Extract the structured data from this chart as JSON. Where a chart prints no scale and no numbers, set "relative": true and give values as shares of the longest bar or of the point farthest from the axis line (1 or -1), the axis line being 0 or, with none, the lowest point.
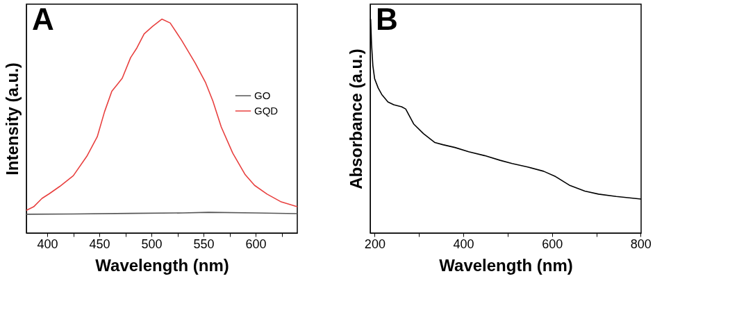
{
  "chart_data": [
    {
      "type": "line",
      "title": "A",
      "xlabel": "Wavelength (nm)",
      "ylabel": "Intensity (a.u.)",
      "relative": true,
      "legend": "right",
      "grid": false,
      "xlim": [
        380,
        640
      ],
      "xticks": [
        400,
        {
          "value": 425,
          "label": null
        },
        450,
        {
          "value": 475,
          "label": null
        },
        500,
        {
          "value": 525,
          "label": null
        },
        550,
        {
          "value": 575,
          "label": null
        },
        600,
        {
          "value": 625,
          "label": null
        }
      ],
      "series": [
        {
          "name": "GO",
          "color": "#555555",
          "x": [
            380,
            425,
            480,
            530,
            555,
            600,
            640
          ],
          "values": [
            0.088,
            0.089,
            0.092,
            0.094,
            0.097,
            0.094,
            0.091
          ]
        },
        {
          "name": "GQD",
          "color": "#e8403f",
          "x": [
            380,
            387,
            395,
            402,
            412,
            425,
            438,
            448,
            455,
            462,
            467,
            472,
            480,
            486,
            493,
            501,
            510,
            518,
            529,
            542,
            552,
            559,
            567,
            578,
            590,
            599,
            611,
            624,
            640
          ],
          "values": [
            0.106,
            0.123,
            0.162,
            0.184,
            0.218,
            0.268,
            0.359,
            0.45,
            0.567,
            0.663,
            0.693,
            0.724,
            0.82,
            0.865,
            0.931,
            0.966,
            1.0,
            0.982,
            0.901,
            0.795,
            0.703,
            0.617,
            0.496,
            0.374,
            0.273,
            0.223,
            0.182,
            0.147,
            0.123
          ]
        }
      ]
    },
    {
      "type": "line",
      "title": "B",
      "xlabel": "Wavelength (nm)",
      "ylabel": "Absorbance (a.u.)",
      "relative": true,
      "grid": false,
      "xlim": [
        190,
        801
      ],
      "xticks": [
        200,
        {
          "value": 300,
          "label": null
        },
        400,
        {
          "value": 500,
          "label": null
        },
        600,
        {
          "value": 700,
          "label": null
        },
        800
      ],
      "series": [
        {
          "color": "#000000",
          "x": [
            191,
            193,
            196,
            200,
            208,
            216,
            230,
            243,
            261,
            270,
            288,
            310,
            336,
            354,
            381,
            412,
            448,
            483,
            510,
            545,
            581,
            608,
            639,
            674,
            705,
            745,
            801
          ],
          "values": [
            1.0,
            0.882,
            0.782,
            0.721,
            0.678,
            0.648,
            0.613,
            0.6,
            0.59,
            0.58,
            0.51,
            0.465,
            0.423,
            0.413,
            0.4,
            0.38,
            0.362,
            0.34,
            0.325,
            0.309,
            0.289,
            0.264,
            0.224,
            0.196,
            0.182,
            0.171,
            0.159
          ]
        }
      ]
    }
  ]
}
